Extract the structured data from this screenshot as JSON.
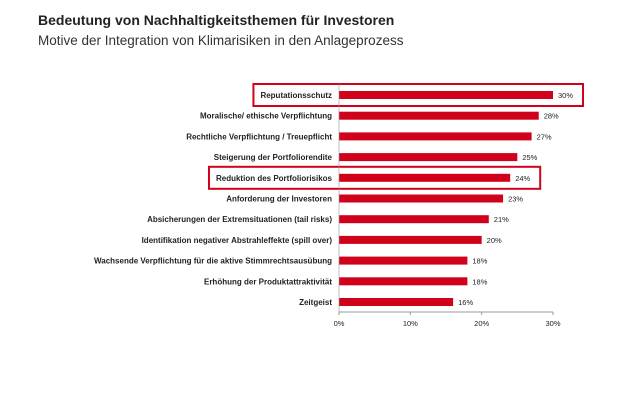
{
  "header": {
    "title": "Bedeutung von Nachhaltigkeitsthemen für Investoren",
    "subtitle": "Motive der Integration von Klimarisiken in den Anlageprozess"
  },
  "chart_data": {
    "type": "bar",
    "orientation": "horizontal",
    "title": "Bedeutung von Nachhaltigkeitsthemen für Investoren",
    "subtitle": "Motive der Integration von Klimarisiken in den Anlageprozess",
    "categories": [
      "Reputationsschutz",
      "Moralische/ ethische Verpflichtung",
      "Rechtliche Verpflichtung / Treuepflicht",
      "Steigerung der Portfoliorendite",
      "Reduktion des Portfoliorisikos",
      "Anforderung der Investoren",
      "Absicherungen der Extremsituationen (tail risks)",
      "Identifikation negativer Abstrahleffekte (spill over)",
      "Wachsende Verpflichtung für die aktive Stimmrechtsausübung",
      "Erhöhung der Produktattraktivität",
      "Zeitgeist"
    ],
    "values": [
      30,
      28,
      27,
      25,
      24,
      23,
      21,
      20,
      18,
      18,
      16
    ],
    "value_labels": [
      "30%",
      "28%",
      "27%",
      "25%",
      "24%",
      "23%",
      "21%",
      "20%",
      "18%",
      "18%",
      "16%"
    ],
    "xlim": [
      0,
      30
    ],
    "xticks": [
      0,
      10,
      20,
      30
    ],
    "xtick_labels": [
      "0%",
      "10%",
      "20%",
      "30%"
    ],
    "highlighted": [
      "Reputationsschutz",
      "Reduktion des Portfoliorisikos"
    ],
    "grid": false,
    "legend": "none",
    "colors": {
      "bar": "#d0021b",
      "highlight_box": "#d0021b",
      "axis": "#999999"
    }
  }
}
